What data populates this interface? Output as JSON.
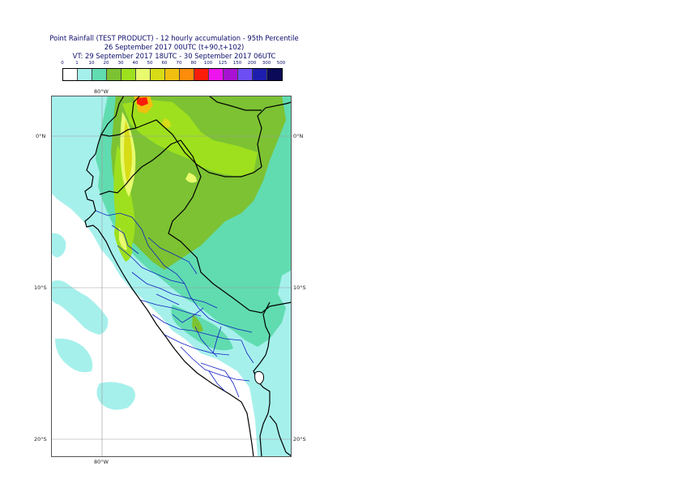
{
  "header": {
    "line1": "Point Rainfall (TEST PRODUCT) - 12 hourly accumulation - 95th Percentile",
    "line2": "26 September 2017 00UTC (t+90,t+102)",
    "line3": "VT: 29 September 2017 18UTC - 30 September 2017 06UTC"
  },
  "legend": {
    "thresholds": [
      "0",
      "1",
      "10",
      "20",
      "30",
      "40",
      "50",
      "60",
      "70",
      "80",
      "100",
      "125",
      "150",
      "200",
      "300",
      "500"
    ],
    "colors": [
      "#ffffff",
      "#a6f0ec",
      "#61dcb0",
      "#7cc233",
      "#9ee01e",
      "#e8fa6e",
      "#d8dc16",
      "#f0c010",
      "#fc8c0a",
      "#fa1e0a",
      "#ee14ee",
      "#a812d2",
      "#6c4ef4",
      "#1e1eae",
      "#0a0a56"
    ]
  },
  "map": {
    "lon_label_top": "80°W",
    "lon_label_bottom": "80°W",
    "lat_labels": [
      "0°N",
      "10°S",
      "20°S"
    ]
  }
}
